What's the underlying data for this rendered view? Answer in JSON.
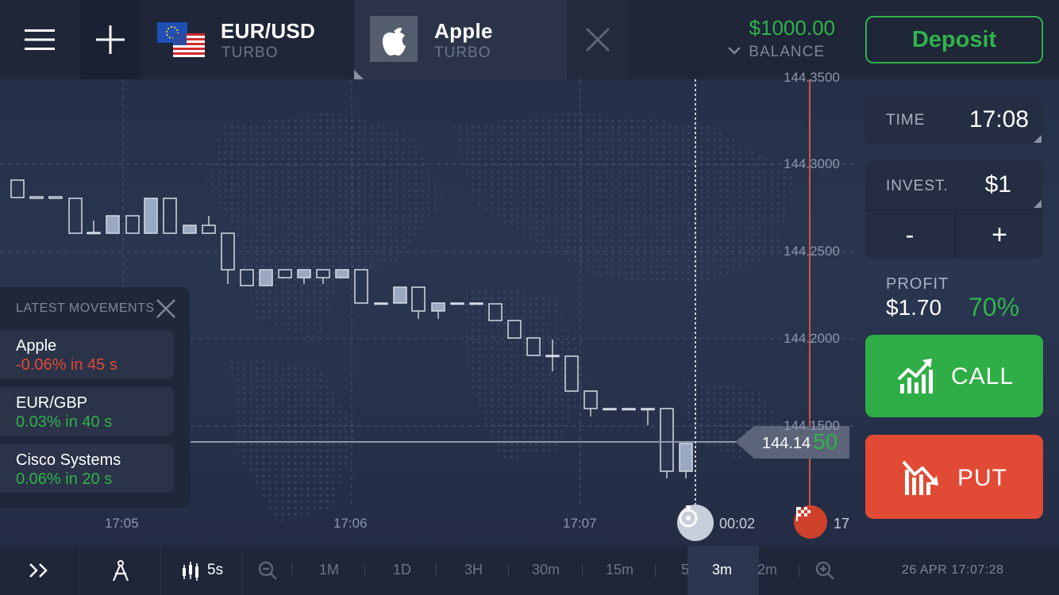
{
  "header": {
    "tabs": [
      {
        "title": "EUR/USD",
        "subtitle": "TURBO"
      },
      {
        "title": "Apple",
        "subtitle": "TURBO"
      }
    ],
    "balance": {
      "amount": "$1000.00",
      "label": "BALANCE"
    },
    "deposit_label": "Deposit"
  },
  "chart": {
    "price_labels": [
      "144.3000",
      "144.2500",
      "144.2000",
      "144.1500"
    ],
    "top_price_label": "144.3500",
    "time_labels": [
      "17:05",
      "17:06",
      "17:07"
    ],
    "current_price_main": "144.14",
    "current_price_tail": "50",
    "timer": "00:02",
    "expiry_label": "17"
  },
  "movements": {
    "title": "LATEST MOVEMENTS",
    "items": [
      {
        "name": "Apple",
        "change": "-0.06% in 45 s",
        "color": "#e14a34"
      },
      {
        "name": "EUR/GBP",
        "change": "0.03% in 40 s",
        "color": "#31b24a"
      },
      {
        "name": "Cisco Systems",
        "change": "0.06% in 20 s",
        "color": "#31b24a"
      }
    ]
  },
  "trade": {
    "time_label": "TIME",
    "time_value": "17:08",
    "invest_label": "INVEST.",
    "invest_value": "$1",
    "minus": "-",
    "plus": "+",
    "profit_label": "PROFIT",
    "profit_amount": "$1.70",
    "profit_percent": "70%",
    "call_label": "CALL",
    "put_label": "PUT"
  },
  "bottombar": {
    "interval": "5s",
    "timeframes": [
      "1M",
      "1D",
      "3H",
      "30m",
      "15m",
      "5",
      "3m",
      "2m"
    ],
    "active_timeframe": "3m",
    "datetime": "26 APR 17:07:28"
  },
  "colors": {
    "green": "#31b24a",
    "red": "#e14a34",
    "background": "#232d45"
  }
}
